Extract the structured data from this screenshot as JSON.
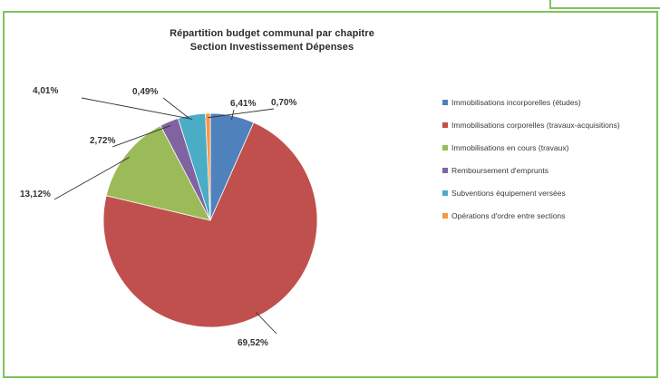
{
  "chart_data": {
    "type": "pie",
    "title": "Répartition budget communal par chapitre",
    "subtitle": "Section Investissement Dépenses",
    "legend_position": "right",
    "slices": [
      {
        "name": "Immobilisations incorporelles (études)",
        "label": "6,41%",
        "value": 6.41,
        "color": "#4f81bd"
      },
      {
        "name": "Immobilisations corporelles (travaux-acquisitions)",
        "label": "69,52%",
        "value": 69.52,
        "color": "#c0504d"
      },
      {
        "name": "Immobilisations en cours (travaux)",
        "label": "13,12%",
        "value": 13.12,
        "color": "#9bbb59"
      },
      {
        "name": "Remboursement d'emprunts",
        "label": "2,72%",
        "value": 2.72,
        "color": "#8064a2"
      },
      {
        "name": "Subventions équipement versées",
        "label": "4,01%",
        "value": 4.01,
        "color": "#4bacc6"
      },
      {
        "name": "Opérations d'ordre entre sections",
        "label": "0,70%",
        "value": 0.7,
        "color": "#f79646"
      }
    ],
    "extra_labels": [
      {
        "label": "0,49%",
        "value": 0.49
      }
    ]
  }
}
